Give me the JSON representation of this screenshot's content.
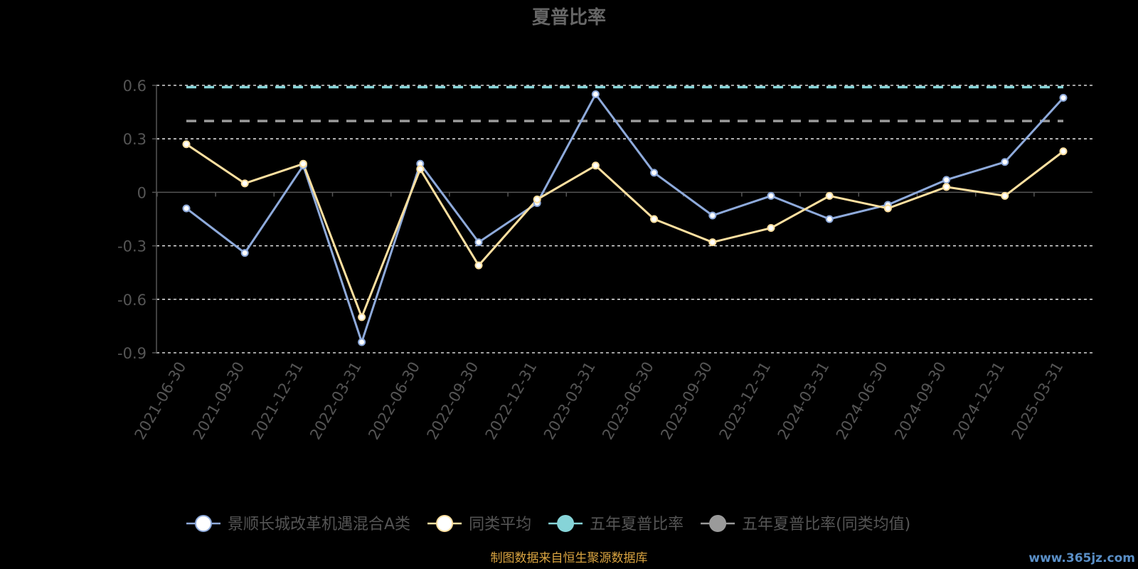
{
  "chart_data": {
    "type": "line",
    "title": "夏普比率",
    "categories": [
      "2021-06-30",
      "2021-09-30",
      "2021-12-31",
      "2022-03-31",
      "2022-06-30",
      "2022-09-30",
      "2022-12-31",
      "2023-03-31",
      "2023-06-30",
      "2023-09-30",
      "2023-12-31",
      "2024-03-31",
      "2024-06-30",
      "2024-09-30",
      "2024-12-31",
      "2025-03-31"
    ],
    "y_ticks": [
      "0.6",
      "0.3",
      "0",
      "-0.3",
      "-0.6",
      "-0.9"
    ],
    "ylim": [
      -0.9,
      0.6
    ],
    "grid": true,
    "legend_position": "bottom",
    "series": [
      {
        "name": "景顺长城改革机遇混合A类",
        "color": "#8eaadb",
        "values": [
          -0.09,
          -0.34,
          0.15,
          -0.84,
          0.16,
          -0.28,
          -0.06,
          0.55,
          0.11,
          -0.13,
          -0.02,
          -0.15,
          -0.07,
          0.07,
          0.17,
          0.53
        ]
      },
      {
        "name": "同类平均",
        "color": "#ffe0a0",
        "values": [
          0.27,
          0.05,
          0.16,
          -0.7,
          0.13,
          -0.41,
          -0.04,
          0.15,
          -0.15,
          -0.28,
          -0.2,
          -0.02,
          -0.09,
          0.03,
          -0.02,
          0.23
        ]
      },
      {
        "name": "五年夏普比率",
        "color": "#86d4d8",
        "style": "dashed",
        "value": 0.59
      },
      {
        "name": "五年夏普比率(同类均值)",
        "color": "#9a9a9a",
        "style": "dashed",
        "value": 0.4
      }
    ]
  },
  "footer": {
    "source": "制图数据来自恒生聚源数据库",
    "watermark": "www.365jz.com"
  },
  "colors": {
    "background": "#000000",
    "title": "#666666",
    "axis": "#555555",
    "tick_label": "#555555",
    "grid": "#ffffff",
    "legend_label": "#555555",
    "source": "#d9a441",
    "watermark": "#5a8fc7"
  }
}
